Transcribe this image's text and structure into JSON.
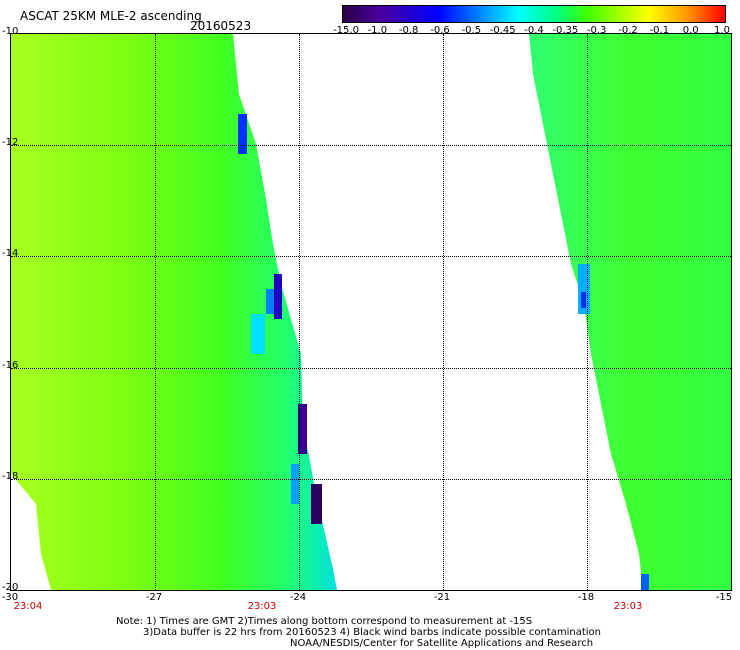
{
  "header": {
    "title": "ASCAT 25KM MLE-2 ascending",
    "date": "20160523"
  },
  "colorbar": {
    "labels": [
      "-15.0",
      "-1.0",
      "-0.8",
      "-0.6",
      "-0.5",
      "-0.45",
      "-0.4",
      "-0.35",
      "-0.3",
      "-0.2",
      "-0.1",
      "0.0",
      "1.0"
    ]
  },
  "axes": {
    "lat_labels": [
      "-10",
      "-12",
      "-14",
      "-16",
      "-18",
      "-20"
    ],
    "lon_labels": [
      "-30",
      "-27",
      "-24",
      "-21",
      "-18",
      "-15"
    ]
  },
  "times": [
    "23:04",
    "23:03",
    "23:03"
  ],
  "notes": {
    "line1": "Note: 1) Times are GMT 2)Times along bottom correspond to measurement at -15S",
    "line2": "3)Data buffer is 22 hrs from 20160523 4) Black wind barbs indicate possible contamination",
    "line3": "NOAA/NESDIS/Center for Satellite Applications and Research"
  },
  "colors": {
    "low": "#2a0045",
    "mid": "#00ff80",
    "high": "#ff0000",
    "time_label": "#d00000"
  }
}
